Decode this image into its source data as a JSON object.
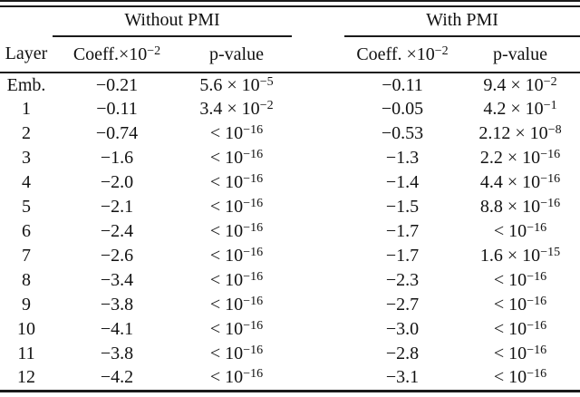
{
  "table": {
    "colors": {
      "background": "#ffffff",
      "text": "#111111",
      "rule": "#1a1a1a"
    },
    "group_headers": [
      {
        "label": "Without PMI"
      },
      {
        "label": "With PMI"
      }
    ],
    "col_headers": {
      "layer": "Layer",
      "without_coeff": "Coeff.×10^{−2}",
      "without_p": "p-value",
      "with_coeff": "Coeff. ×10^{−2}",
      "with_p": "p-value"
    },
    "rows": [
      {
        "layer": "Emb.",
        "wo_coeff": "−0.21",
        "wo_p": "5.6 × 10^{−5}",
        "w_coeff": "−0.11",
        "w_p": "9.4 × 10^{−2}"
      },
      {
        "layer": "1",
        "wo_coeff": "−0.11",
        "wo_p": "3.4 × 10^{−2}",
        "w_coeff": "−0.05",
        "w_p": "4.2 × 10^{−1}"
      },
      {
        "layer": "2",
        "wo_coeff": "−0.74",
        "wo_p": "< 10^{−16}",
        "w_coeff": "−0.53",
        "w_p": "2.12 × 10^{−8}"
      },
      {
        "layer": "3",
        "wo_coeff": "−1.6",
        "wo_p": "< 10^{−16}",
        "w_coeff": "−1.3",
        "w_p": "2.2 × 10^{−16}"
      },
      {
        "layer": "4",
        "wo_coeff": "−2.0",
        "wo_p": "< 10^{−16}",
        "w_coeff": "−1.4",
        "w_p": "4.4 × 10^{−16}"
      },
      {
        "layer": "5",
        "wo_coeff": "−2.1",
        "wo_p": "< 10^{−16}",
        "w_coeff": "−1.5",
        "w_p": "8.8 × 10^{−16}"
      },
      {
        "layer": "6",
        "wo_coeff": "−2.4",
        "wo_p": "< 10^{−16}",
        "w_coeff": "−1.7",
        "w_p": "< 10^{−16}"
      },
      {
        "layer": "7",
        "wo_coeff": "−2.6",
        "wo_p": "< 10^{−16}",
        "w_coeff": "−1.7",
        "w_p": "1.6 × 10^{−15}"
      },
      {
        "layer": "8",
        "wo_coeff": "−3.4",
        "wo_p": "< 10^{−16}",
        "w_coeff": "−2.3",
        "w_p": "< 10^{−16}"
      },
      {
        "layer": "9",
        "wo_coeff": "−3.8",
        "wo_p": "< 10^{−16}",
        "w_coeff": "−2.7",
        "w_p": "< 10^{−16}"
      },
      {
        "layer": "10",
        "wo_coeff": "−4.1",
        "wo_p": "< 10^{−16}",
        "w_coeff": "−3.0",
        "w_p": "< 10^{−16}"
      },
      {
        "layer": "11",
        "wo_coeff": "−3.8",
        "wo_p": "< 10^{−16}",
        "w_coeff": "−2.8",
        "w_p": "< 10^{−16}"
      },
      {
        "layer": "12",
        "wo_coeff": "−4.2",
        "wo_p": "< 10^{−16}",
        "w_coeff": "−3.1",
        "w_p": "< 10^{−16}"
      }
    ]
  }
}
